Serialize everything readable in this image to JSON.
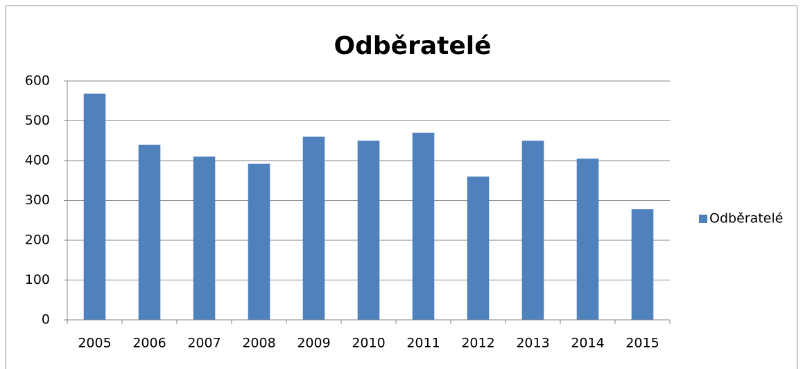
{
  "chart_data": {
    "type": "bar",
    "title": "Odběratelé",
    "categories": [
      "2005",
      "2006",
      "2007",
      "2008",
      "2009",
      "2010",
      "2011",
      "2012",
      "2013",
      "2014",
      "2015"
    ],
    "series": [
      {
        "name": "Odběratelé",
        "color": "#4f81bd",
        "values": [
          568,
          440,
          410,
          392,
          460,
          450,
          470,
          360,
          450,
          405,
          278
        ]
      }
    ],
    "ylim": [
      0,
      600
    ],
    "yticks": [
      0,
      100,
      200,
      300,
      400,
      500,
      600
    ],
    "grid": true,
    "legend": "right"
  }
}
